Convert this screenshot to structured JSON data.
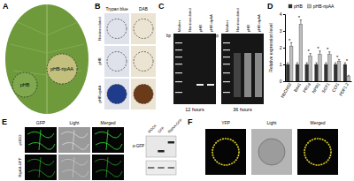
{
  "panels": {
    "A": {
      "letter": "A",
      "labels": [
        "pHB",
        "pHB-ripAA"
      ]
    },
    "B": {
      "letter": "B",
      "columns": [
        "Trypan blue",
        "DAB"
      ],
      "rows": [
        "Noninoculated",
        "pHB",
        "pHB-ripAA"
      ]
    },
    "C": {
      "letter": "C",
      "lanes": [
        "Marker",
        "Noninoculated",
        "pHB",
        "pHB-ripAA"
      ],
      "unit": "bp",
      "gels": [
        "12 hours",
        "36 hours"
      ]
    },
    "D": {
      "letter": "D"
    },
    "E": {
      "letter": "E",
      "columns": [
        "GFP",
        "Light",
        "Merged"
      ],
      "rows": [
        "pGDG",
        "RipAA-GFP"
      ],
      "blot_lanes": [
        "MOCK",
        "GFP",
        "RipAA-GFP"
      ],
      "blot_label": "α-GFP"
    },
    "F": {
      "letter": "F",
      "columns": [
        "YFP",
        "Light",
        "Merged"
      ]
    }
  },
  "chart_data": {
    "type": "bar",
    "y_label": "Relative expression level",
    "categories": [
      "NbCHS2",
      "Bax1",
      "PR1a",
      "NPR1",
      "SGT1",
      "COI1",
      "PDF1.2"
    ],
    "series": [
      {
        "name": "pHB",
        "color": "#333333",
        "values": [
          1.0,
          1.0,
          1.0,
          1.0,
          1.0,
          1.0,
          1.0
        ],
        "errors": [
          0.1,
          0.1,
          0.1,
          0.1,
          0.1,
          0.1,
          0.1
        ]
      },
      {
        "name": "pHB-ripAA",
        "color": "#bdbdbd",
        "values": [
          2.1,
          3.4,
          1.5,
          1.6,
          1.6,
          1.2,
          0.3
        ],
        "errors": [
          0.2,
          0.25,
          0.15,
          0.2,
          0.15,
          0.1,
          0.05
        ]
      }
    ],
    "annotations": [
      "*",
      "*",
      "*",
      "*",
      "*",
      "*",
      "*"
    ],
    "ylim": [
      0,
      4
    ],
    "yticks": [
      0,
      1,
      2,
      3,
      4
    ],
    "grid": false
  }
}
